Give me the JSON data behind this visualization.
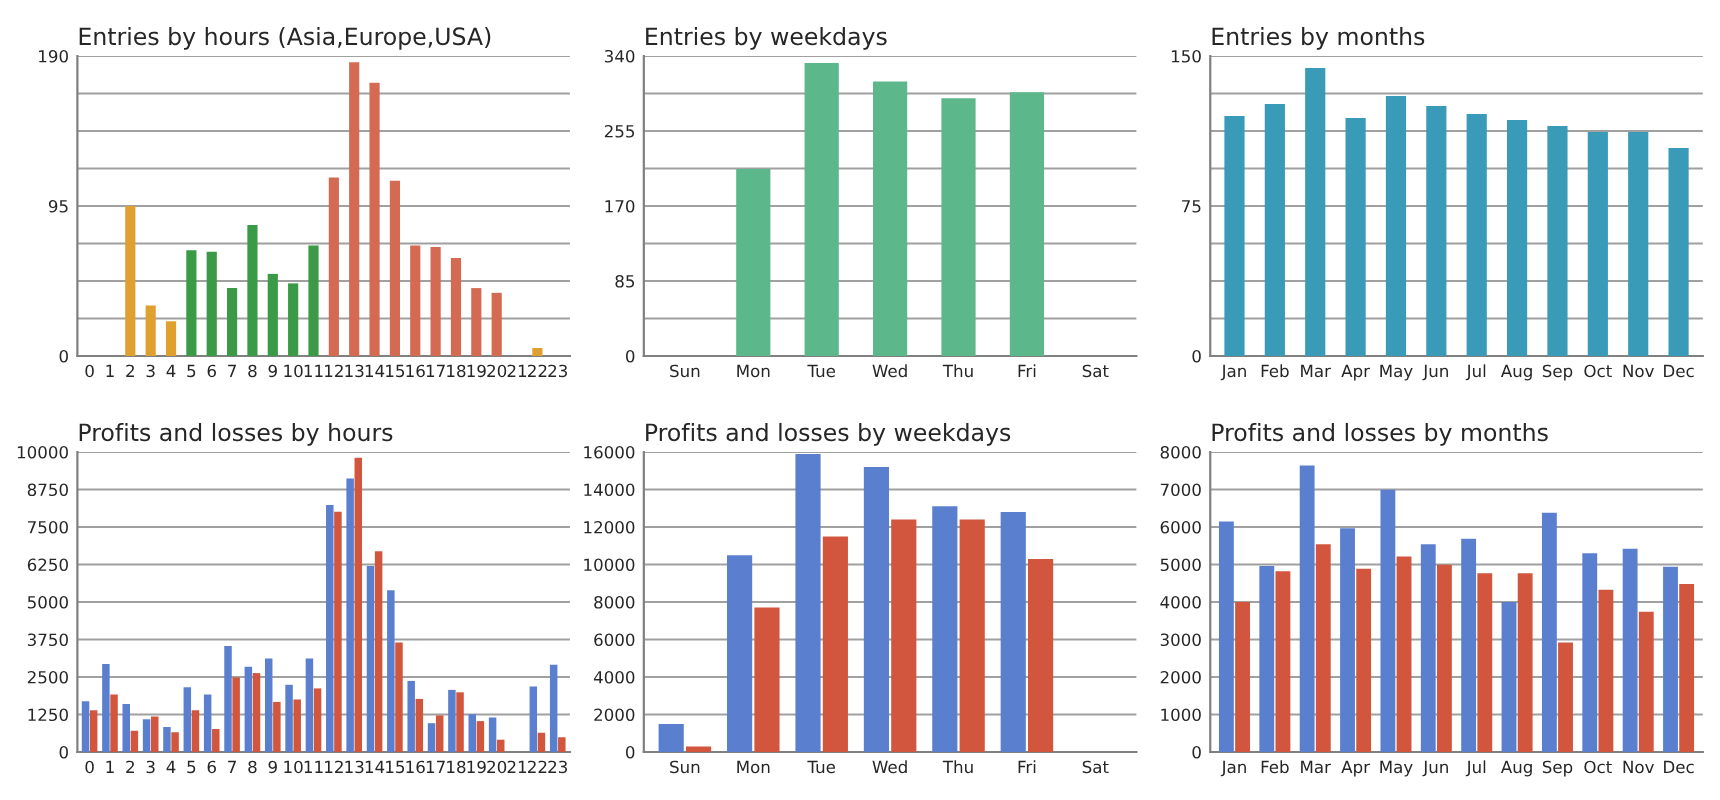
{
  "chart_data": [
    {
      "type": "bar",
      "title": "Entries by hours (Asia,Europe,USA)",
      "categories": [
        "0",
        "1",
        "2",
        "3",
        "4",
        "5",
        "6",
        "7",
        "8",
        "9",
        "10",
        "11",
        "12",
        "13",
        "14",
        "15",
        "16",
        "17",
        "18",
        "19",
        "20",
        "21",
        "22",
        "23"
      ],
      "values": [
        null,
        null,
        95,
        32,
        22,
        67,
        66,
        43,
        83,
        52,
        46,
        70,
        113,
        186,
        173,
        111,
        70,
        69,
        62,
        43,
        40,
        null,
        5,
        null
      ],
      "colors": [
        "#e0a030",
        "#e0a030",
        "#e0a030",
        "#e0a030",
        "#e0a030",
        "#3a9a45",
        "#3a9a45",
        "#3a9a45",
        "#3a9a45",
        "#3a9a45",
        "#3a9a45",
        "#3a9a45",
        "#d56a52",
        "#d56a52",
        "#d56a52",
        "#d56a52",
        "#d56a52",
        "#d56a52",
        "#d56a52",
        "#d56a52",
        "#d56a52",
        "#d56a52",
        "#e0a030",
        "#e0a030"
      ],
      "ylim": [
        0,
        190
      ],
      "yticks": [
        0,
        {
          "value": 23.75,
          "label": null
        },
        {
          "value": 47.5,
          "label": null
        },
        {
          "value": 71.25,
          "label": null
        },
        95,
        {
          "value": 118.75,
          "label": null
        },
        {
          "value": 142.5,
          "label": null
        },
        {
          "value": 166.25,
          "label": null
        },
        190
      ],
      "grid": "y"
    },
    {
      "type": "bar",
      "title": "Entries by weekdays",
      "categories": [
        "Sun",
        "Mon",
        "Tue",
        "Wed",
        "Thu",
        "Fri",
        "Sat"
      ],
      "values": [
        null,
        212,
        332,
        311,
        292,
        299,
        null
      ],
      "color": "#5cb88a",
      "ylim": [
        0,
        340
      ],
      "yticks": [
        0,
        {
          "value": 42.5,
          "label": null
        },
        85,
        {
          "value": 127.5,
          "label": null
        },
        170,
        {
          "value": 212.5,
          "label": null
        },
        255,
        {
          "value": 297.5,
          "label": null
        },
        340
      ],
      "grid": "y"
    },
    {
      "type": "bar",
      "title": "Entries by months",
      "categories": [
        "Jan",
        "Feb",
        "Mar",
        "Apr",
        "May",
        "Jun",
        "Jul",
        "Aug",
        "Sep",
        "Oct",
        "Nov",
        "Dec"
      ],
      "values": [
        120,
        126,
        144,
        119,
        130,
        125,
        121,
        118,
        115,
        112,
        112,
        104
      ],
      "color": "#3a9bb8",
      "ylim": [
        0,
        150
      ],
      "yticks": [
        0,
        {
          "value": 18.75,
          "label": null
        },
        {
          "value": 37.5,
          "label": null
        },
        {
          "value": 56.25,
          "label": null
        },
        75,
        {
          "value": 93.75,
          "label": null
        },
        {
          "value": 112.5,
          "label": null
        },
        {
          "value": 131.25,
          "label": null
        },
        150
      ],
      "grid": "y"
    },
    {
      "type": "bar",
      "title": "Profits and losses by hours",
      "categories": [
        "0",
        "1",
        "2",
        "3",
        "4",
        "5",
        "6",
        "7",
        "8",
        "9",
        "10",
        "11",
        "12",
        "13",
        "14",
        "15",
        "16",
        "17",
        "18",
        "19",
        "20",
        "21",
        "22",
        "23"
      ],
      "series": [
        {
          "color": "#5b7fcf",
          "values": [
            1690,
            2930,
            1600,
            1090,
            830,
            2160,
            1920,
            3530,
            2840,
            3120,
            2240,
            3120,
            8230,
            9120,
            6200,
            5390,
            2370,
            960,
            2070,
            1260,
            1150,
            null,
            2180,
            2910
          ]
        },
        {
          "color": "#d2563e",
          "values": [
            1390,
            1920,
            710,
            1180,
            660,
            1390,
            770,
            2480,
            2630,
            1670,
            1750,
            2120,
            8010,
            9810,
            6690,
            3650,
            1770,
            1220,
            1990,
            1030,
            410,
            null,
            640,
            490
          ]
        }
      ],
      "ylim": [
        0,
        10000
      ],
      "yticks": [
        0,
        1250,
        2500,
        3750,
        5000,
        6250,
        7500,
        8750,
        10000
      ],
      "grid": "y"
    },
    {
      "type": "bar",
      "title": "Profits and losses by weekdays",
      "categories": [
        "Sun",
        "Mon",
        "Tue",
        "Wed",
        "Thu",
        "Fri",
        "Sat"
      ],
      "series": [
        {
          "color": "#5b7fcf",
          "values": [
            1500,
            10500,
            15900,
            15200,
            13100,
            12800,
            null
          ]
        },
        {
          "color": "#d2563e",
          "values": [
            300,
            7700,
            11500,
            12400,
            12400,
            10300,
            null
          ]
        }
      ],
      "ylim": [
        0,
        16000
      ],
      "yticks": [
        0,
        2000,
        4000,
        6000,
        8000,
        10000,
        12000,
        14000,
        16000
      ],
      "grid": "y"
    },
    {
      "type": "bar",
      "title": "Profits and losses by months",
      "categories": [
        "Jan",
        "Feb",
        "Mar",
        "Apr",
        "May",
        "Jun",
        "Jul",
        "Aug",
        "Sep",
        "Oct",
        "Nov",
        "Dec"
      ],
      "series": [
        {
          "color": "#5b7fcf",
          "values": [
            6150,
            4960,
            7640,
            5970,
            6990,
            5540,
            5690,
            4000,
            6380,
            5300,
            5420,
            4940
          ]
        },
        {
          "color": "#d2563e",
          "values": [
            4000,
            4820,
            5540,
            4890,
            5210,
            4990,
            4770,
            4770,
            2920,
            4330,
            3740,
            4480
          ]
        }
      ],
      "ylim": [
        0,
        8000
      ],
      "yticks": [
        0,
        1000,
        2000,
        3000,
        4000,
        5000,
        6000,
        7000,
        8000
      ],
      "grid": "y"
    }
  ]
}
